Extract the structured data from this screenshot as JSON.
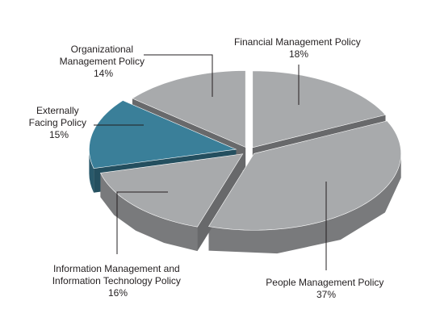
{
  "chart_data": {
    "type": "pie",
    "style": "3d-exploded",
    "highlight_color": "#3a7f99",
    "base_color": "#a8aaac",
    "slices": [
      {
        "name_lines": [
          "Financial Management Policy"
        ],
        "value": 18,
        "value_label": "18%"
      },
      {
        "name_lines": [
          "People Management Policy"
        ],
        "value": 37,
        "value_label": "37%"
      },
      {
        "name_lines": [
          "Information Management and",
          "Information Technology Policy"
        ],
        "value": 16,
        "value_label": "16%"
      },
      {
        "name_lines": [
          "Externally",
          "Facing Policy"
        ],
        "value": 15,
        "value_label": "15%",
        "highlighted": true
      },
      {
        "name_lines": [
          "Organizational",
          "Management Policy"
        ],
        "value": 14,
        "value_label": "14%"
      }
    ]
  }
}
